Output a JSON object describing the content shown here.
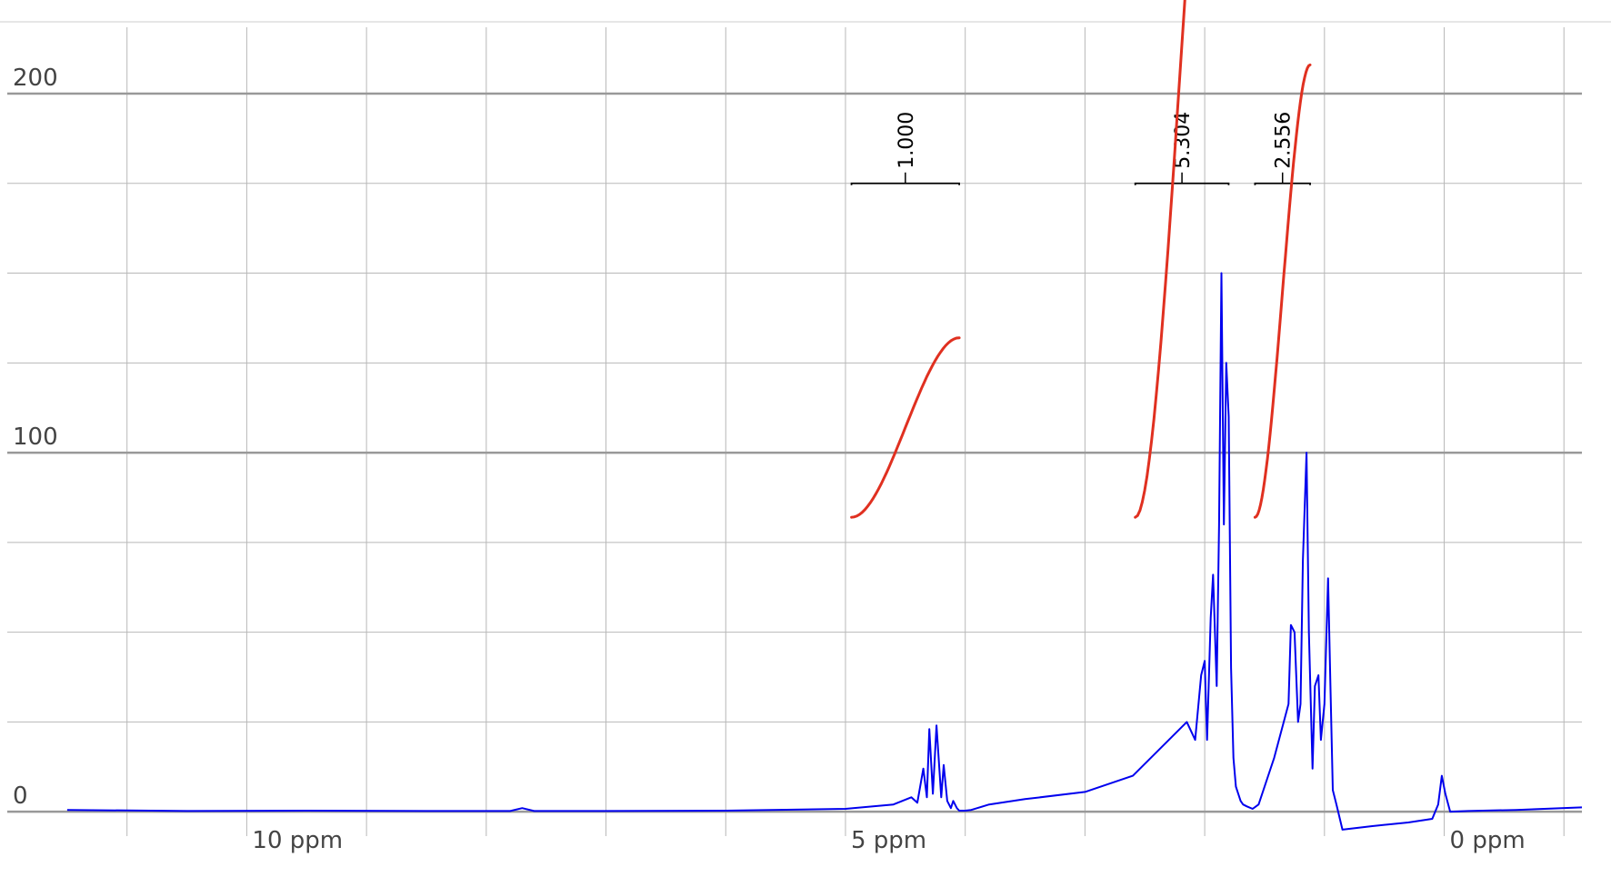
{
  "chart_data": {
    "type": "line",
    "title": "",
    "xlabel": "",
    "ylabel": "",
    "x_reversed": true,
    "xlim": [
      12.0,
      -1.15
    ],
    "ylim": [
      -3,
      220
    ],
    "grid": true,
    "x_ticks": [
      {
        "value": 10,
        "label": "10 ppm"
      },
      {
        "value": 5,
        "label": "5 ppm"
      },
      {
        "value": 0,
        "label": "0 ppm"
      }
    ],
    "y_ticks": [
      {
        "value": 0,
        "label": "0"
      },
      {
        "value": 100,
        "label": "100"
      },
      {
        "value": 200,
        "label": "200"
      }
    ],
    "colors": {
      "spectrum": "#0000ee",
      "integral": "#e03020",
      "grid": "#b8b8b8",
      "major_grid": "#999999",
      "bracket": "#000000"
    },
    "spectrum": {
      "x": [
        11.5,
        10.5,
        9.5,
        8.5,
        7.8,
        7.7,
        7.6,
        7.0,
        6.0,
        5.0,
        4.6,
        4.45,
        4.4,
        4.35,
        4.32,
        4.3,
        4.27,
        4.24,
        4.2,
        4.18,
        4.15,
        4.12,
        4.1,
        4.07,
        4.05,
        4.02,
        4.0,
        3.95,
        3.9,
        3.8,
        3.5,
        3.0,
        2.6,
        2.15,
        2.08,
        2.03,
        2.0,
        1.98,
        1.95,
        1.93,
        1.9,
        1.88,
        1.86,
        1.84,
        1.82,
        1.8,
        1.78,
        1.76,
        1.74,
        1.72,
        1.7,
        1.68,
        1.65,
        1.6,
        1.55,
        1.42,
        1.3,
        1.28,
        1.25,
        1.22,
        1.2,
        1.18,
        1.15,
        1.13,
        1.1,
        1.08,
        1.05,
        1.03,
        1.0,
        0.97,
        0.95,
        0.93,
        0.9,
        0.85,
        0.6,
        0.3,
        0.1,
        0.05,
        0.02,
        -0.01,
        -0.05,
        -0.2,
        -0.6,
        -1.15
      ],
      "y": [
        0.5,
        0.2,
        0.3,
        0.2,
        0.2,
        1.0,
        0.2,
        0.2,
        0.3,
        0.8,
        2.0,
        4,
        2.5,
        12,
        4,
        23,
        5,
        24,
        4,
        13,
        3,
        1,
        3,
        1,
        0.3,
        0.3,
        0.3,
        0.5,
        1.0,
        2.0,
        3.5,
        5.5,
        10,
        25,
        20,
        38,
        42,
        20,
        54,
        66,
        35,
        80,
        150,
        80,
        125,
        110,
        40,
        15,
        7,
        5,
        3,
        2,
        1.5,
        0.8,
        2.0,
        15,
        30,
        52,
        50,
        25,
        30,
        70,
        100,
        50,
        12,
        35,
        38,
        20,
        30,
        65,
        35,
        6,
        2,
        -5,
        -4,
        -3,
        -2,
        2,
        10,
        5,
        0,
        0.2,
        0.5,
        1.2
      ]
    },
    "integrals": [
      {
        "label": "1.000",
        "x_start": 4.95,
        "x_end": 4.05,
        "y_low": 82,
        "y_high": 132,
        "bracket_y": 175
      },
      {
        "label": "5.304",
        "x_start": 2.58,
        "x_end": 1.8,
        "y_low": 82,
        "y_high": 346,
        "bracket_y": 175
      },
      {
        "label": "2.556",
        "x_start": 1.58,
        "x_end": 1.12,
        "y_low": 82,
        "y_high": 208,
        "bracket_y": 175
      }
    ]
  }
}
